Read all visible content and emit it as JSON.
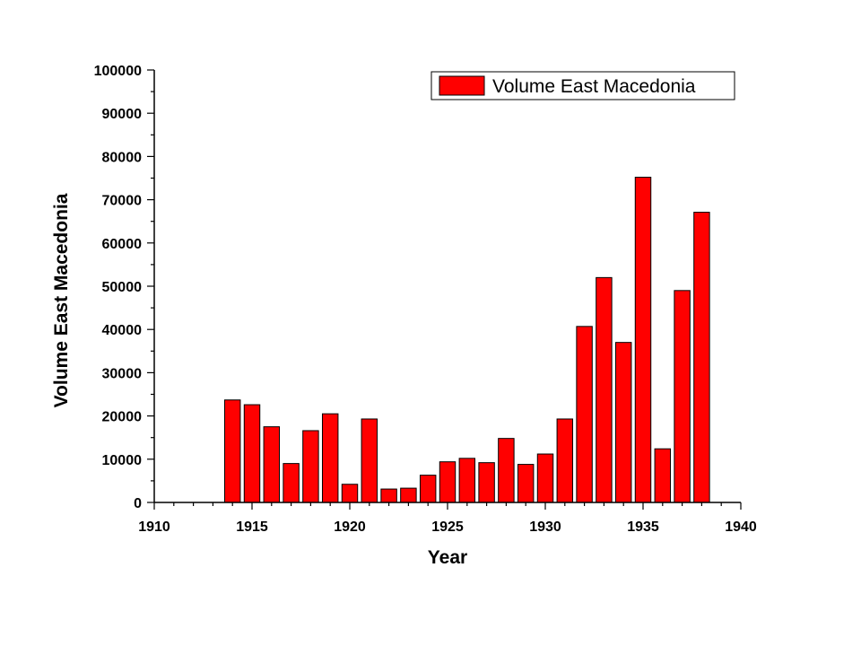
{
  "chart_data": {
    "type": "bar",
    "title": "",
    "xlabel": "Year",
    "ylabel": "Volume East Macedonia",
    "xlim": [
      1910,
      1940
    ],
    "ylim": [
      0,
      100000
    ],
    "xticks": [
      "1910",
      "1915",
      "1920",
      "1925",
      "1930",
      "1935",
      "1940"
    ],
    "yticks": [
      "0",
      "10000",
      "20000",
      "30000",
      "40000",
      "50000",
      "60000",
      "70000",
      "80000",
      "90000",
      "100000"
    ],
    "legend_position": "top-right",
    "grid": false,
    "bar_color": "#ff0000",
    "series": [
      {
        "name": "Volume East Macedonia",
        "x": [
          1914,
          1915,
          1916,
          1917,
          1918,
          1919,
          1920,
          1921,
          1922,
          1923,
          1924,
          1925,
          1926,
          1927,
          1928,
          1929,
          1930,
          1931,
          1932,
          1933,
          1934,
          1935,
          1936,
          1937,
          1938
        ],
        "values": [
          23700,
          22600,
          17500,
          9000,
          16600,
          20500,
          4200,
          19300,
          3100,
          3300,
          6300,
          9400,
          10200,
          9200,
          14800,
          8800,
          11200,
          19300,
          40700,
          52000,
          37000,
          75200,
          12400,
          49000,
          67100
        ]
      }
    ]
  }
}
